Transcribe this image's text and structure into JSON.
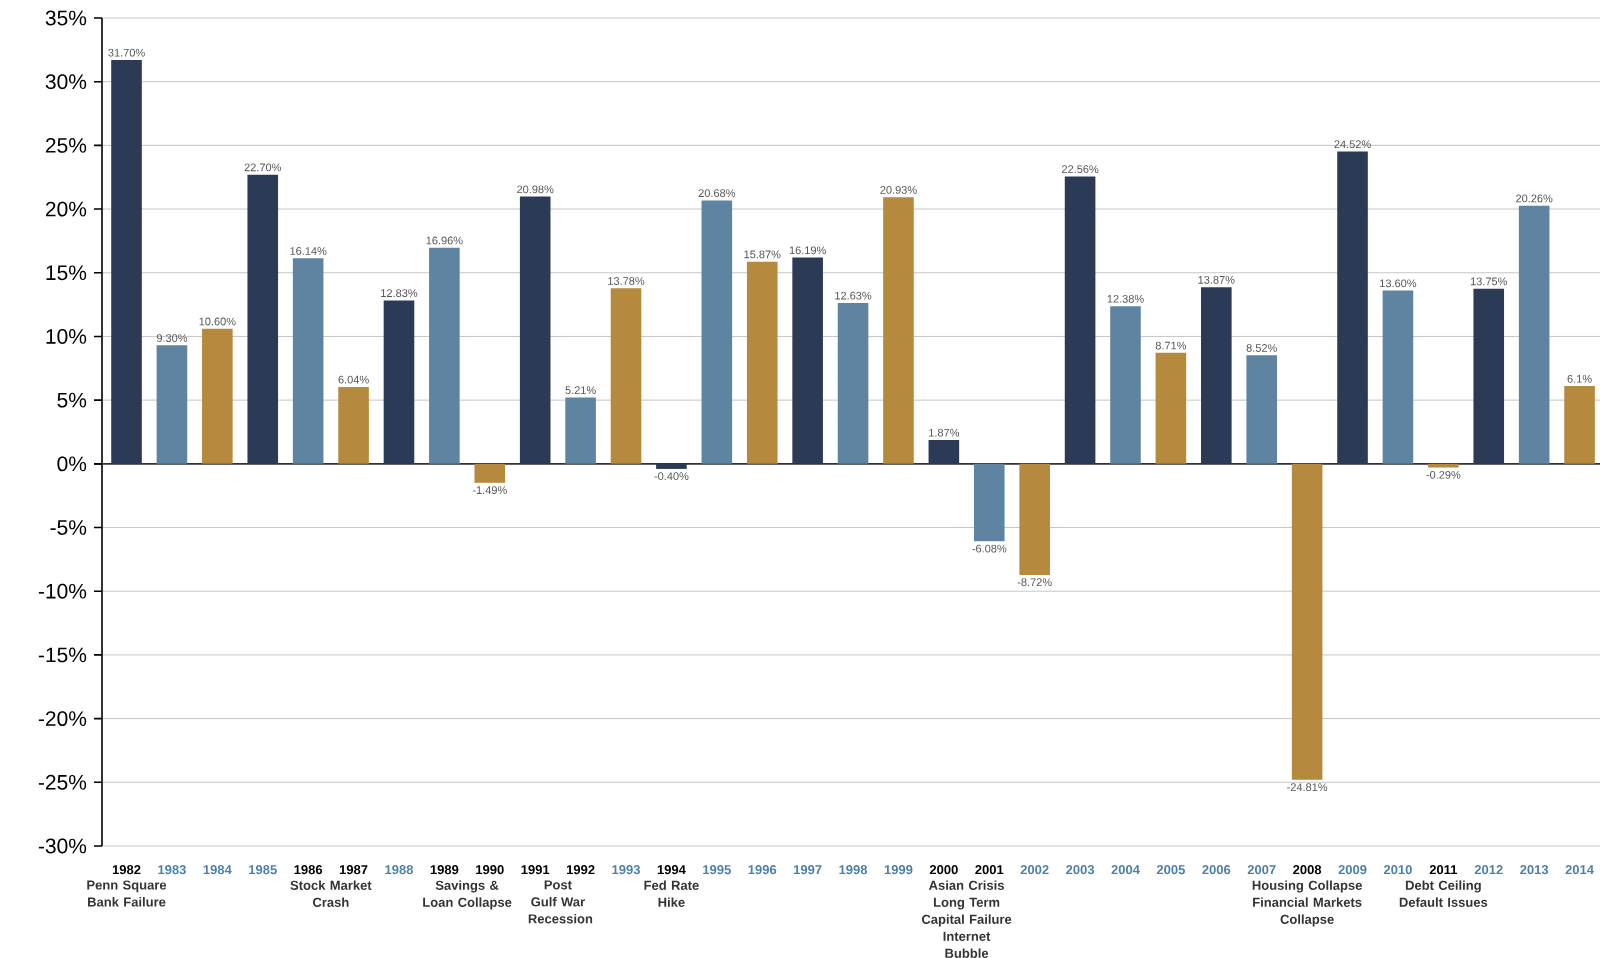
{
  "chart_data": {
    "type": "bar",
    "categories": [
      "1982",
      "1983",
      "1984",
      "1985",
      "1986",
      "1987",
      "1988",
      "1989",
      "1990",
      "1991",
      "1992",
      "1993",
      "1994",
      "1995",
      "1996",
      "1997",
      "1998",
      "1999",
      "2000",
      "2001",
      "2002",
      "2003",
      "2004",
      "2005",
      "2006",
      "2007",
      "2008",
      "2009",
      "2010",
      "2011",
      "2012",
      "2013",
      "2014"
    ],
    "values": [
      31.7,
      9.3,
      10.6,
      22.7,
      16.14,
      6.04,
      12.83,
      16.96,
      -1.49,
      20.98,
      5.21,
      13.78,
      -0.4,
      20.68,
      15.87,
      16.19,
      12.63,
      20.93,
      1.87,
      -6.08,
      -8.72,
      22.56,
      12.38,
      8.71,
      13.87,
      8.52,
      -24.81,
      24.52,
      13.6,
      -0.29,
      13.75,
      20.26,
      6.1
    ],
    "colors": [
      "#2b3a55",
      "#5f84a2",
      "#b5893e",
      "#2b3a55",
      "#5f84a2",
      "#b5893e",
      "#2b3a55",
      "#5f84a2",
      "#b5893e",
      "#2b3a55",
      "#5f84a2",
      "#b5893e",
      "#2b3a55",
      "#5f84a2",
      "#b5893e",
      "#2b3a55",
      "#5f84a2",
      "#b5893e",
      "#2b3a55",
      "#5f84a2",
      "#b5893e",
      "#2b3a55",
      "#5f84a2",
      "#b5893e",
      "#2b3a55",
      "#5f84a2",
      "#b5893e",
      "#2b3a55",
      "#5f84a2",
      "#b5893e",
      "#2b3a55",
      "#5f84a2",
      "#b5893e"
    ],
    "value_labels": [
      "31.70%",
      "9.30%",
      "10.60%",
      "22.70%",
      "16.14%",
      "6.04%",
      "12.83%",
      "16.96%",
      "-1.49%",
      "20.98%",
      "5.21%",
      "13.78%",
      "-0.40%",
      "20.68%",
      "15.87%",
      "16.19%",
      "12.63%",
      "20.93%",
      "1.87%",
      "-6.08%",
      "-8.72%",
      "22.56%",
      "12.38%",
      "8.71%",
      "13.87%",
      "8.52%",
      "-24.81%",
      "24.52%",
      "13.60%",
      "-0.29%",
      "13.75%",
      "20.26%",
      "6.1%"
    ],
    "ylim": [
      -30,
      35
    ],
    "yticks": [
      {
        "value": -30,
        "label": "-30%"
      },
      {
        "value": -25,
        "label": "-25%"
      },
      {
        "value": -20,
        "label": "-20%"
      },
      {
        "value": -15,
        "label": "-15%"
      },
      {
        "value": -10,
        "label": "-10%"
      },
      {
        "value": -5,
        "label": "-5%"
      },
      {
        "value": 0,
        "label": "0%"
      },
      {
        "value": 5,
        "label": "5%"
      },
      {
        "value": 10,
        "label": "10%"
      },
      {
        "value": 15,
        "label": "15%"
      },
      {
        "value": 20,
        "label": "20%"
      },
      {
        "value": 25,
        "label": "25%"
      },
      {
        "value": 30,
        "label": "30%"
      },
      {
        "value": 35,
        "label": "35%"
      }
    ],
    "grid": "y",
    "annotations": [
      "Penn Square Bank Failure",
      "Stock Market Crash",
      "Savings & Loan Collapse",
      "Post Gulf War Recession",
      "Fed Rate Hike",
      "Asian Crisis Long Term Capital Failure Internet Bubble",
      "Housing Collapse Financial Markets Collapse",
      "Debt Ceiling Default Issues"
    ]
  }
}
